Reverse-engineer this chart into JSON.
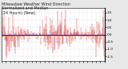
{
  "title": "Milwaukee Weather Wind Direction\nNormalized and Median\n(24 Hours) (New)",
  "title_fontsize": 3.5,
  "bg_color": "#e8e8e8",
  "plot_bg_color": "#ffffff",
  "bar_color": "#cc0000",
  "median_color": "#0000ff",
  "median_value": 0.0,
  "y_min": -1.8,
  "y_max": 1.8,
  "y_ticks": [
    -1.5,
    -1.0,
    -0.5,
    0.0,
    0.5,
    1.0,
    1.5
  ],
  "num_points": 288,
  "seed": 42,
  "grid_color": "#bbbbbb",
  "tick_fontsize": 3.0,
  "median_lw": 0.7
}
